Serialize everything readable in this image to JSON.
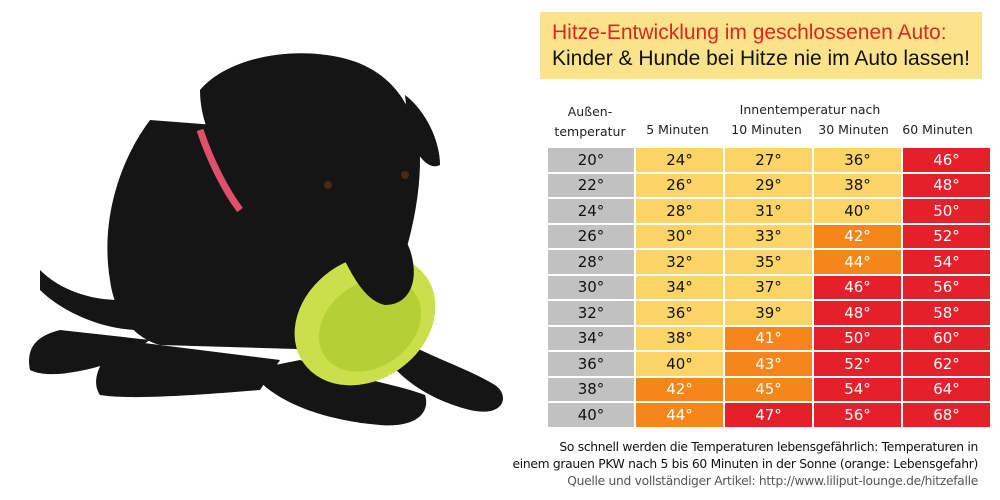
{
  "title": {
    "line1": "Hitze-Entwicklung im geschlossenen Auto:",
    "line2": "Kinder & Hunde bei Hitze nie im Auto lassen!",
    "line1_color": "#e2251c"
  },
  "header": {
    "outside_line1": "Außen-",
    "outside_line2": "temperatur",
    "inside_group": "Innentemperatur nach",
    "columns": [
      "5 Minuten",
      "10 Minuten",
      "30 Minuten",
      "60 Minuten"
    ]
  },
  "colors": {
    "gray": "#c1c1c1",
    "yellow": "#fdd567",
    "orange": "#f5861c",
    "red": "#e4202a",
    "title_box": "#fbe38b"
  },
  "chart_data": {
    "type": "table",
    "columns": [
      "Außentemperatur",
      "5 Minuten",
      "10 Minuten",
      "30 Minuten",
      "60 Minuten"
    ],
    "rows": [
      {
        "outside": "20°",
        "cells": [
          {
            "v": "24°",
            "c": "yellow"
          },
          {
            "v": "27°",
            "c": "yellow"
          },
          {
            "v": "36°",
            "c": "yellow"
          },
          {
            "v": "46°",
            "c": "red"
          }
        ]
      },
      {
        "outside": "22°",
        "cells": [
          {
            "v": "26°",
            "c": "yellow"
          },
          {
            "v": "29°",
            "c": "yellow"
          },
          {
            "v": "38°",
            "c": "yellow"
          },
          {
            "v": "48°",
            "c": "red"
          }
        ]
      },
      {
        "outside": "24°",
        "cells": [
          {
            "v": "28°",
            "c": "yellow"
          },
          {
            "v": "31°",
            "c": "yellow"
          },
          {
            "v": "40°",
            "c": "yellow"
          },
          {
            "v": "50°",
            "c": "red"
          }
        ]
      },
      {
        "outside": "26°",
        "cells": [
          {
            "v": "30°",
            "c": "yellow"
          },
          {
            "v": "33°",
            "c": "yellow"
          },
          {
            "v": "42°",
            "c": "orange"
          },
          {
            "v": "52°",
            "c": "red"
          }
        ]
      },
      {
        "outside": "28°",
        "cells": [
          {
            "v": "32°",
            "c": "yellow"
          },
          {
            "v": "35°",
            "c": "yellow"
          },
          {
            "v": "44°",
            "c": "orange"
          },
          {
            "v": "54°",
            "c": "red"
          }
        ]
      },
      {
        "outside": "30°",
        "cells": [
          {
            "v": "34°",
            "c": "yellow"
          },
          {
            "v": "37°",
            "c": "yellow"
          },
          {
            "v": "46°",
            "c": "red"
          },
          {
            "v": "56°",
            "c": "red"
          }
        ]
      },
      {
        "outside": "32°",
        "cells": [
          {
            "v": "36°",
            "c": "yellow"
          },
          {
            "v": "39°",
            "c": "yellow"
          },
          {
            "v": "48°",
            "c": "red"
          },
          {
            "v": "58°",
            "c": "red"
          }
        ]
      },
      {
        "outside": "34°",
        "cells": [
          {
            "v": "38°",
            "c": "yellow"
          },
          {
            "v": "41°",
            "c": "orange"
          },
          {
            "v": "50°",
            "c": "red"
          },
          {
            "v": "60°",
            "c": "red"
          }
        ]
      },
      {
        "outside": "36°",
        "cells": [
          {
            "v": "40°",
            "c": "yellow"
          },
          {
            "v": "43°",
            "c": "orange"
          },
          {
            "v": "52°",
            "c": "red"
          },
          {
            "v": "62°",
            "c": "red"
          }
        ]
      },
      {
        "outside": "38°",
        "cells": [
          {
            "v": "42°",
            "c": "orange"
          },
          {
            "v": "45°",
            "c": "orange"
          },
          {
            "v": "54°",
            "c": "red"
          },
          {
            "v": "64°",
            "c": "red"
          }
        ]
      },
      {
        "outside": "40°",
        "cells": [
          {
            "v": "44°",
            "c": "orange"
          },
          {
            "v": "47°",
            "c": "red"
          },
          {
            "v": "56°",
            "c": "red"
          },
          {
            "v": "68°",
            "c": "red"
          }
        ]
      }
    ]
  },
  "footer": {
    "line1": "So schnell werden die Temperaturen lebensgefährlich: Temperaturen in",
    "line2": "einem grauen PKW nach 5 bis 60 Minuten in der Sonne (orange: Lebensgefahr)",
    "source": "Quelle und vollständiger Artikel: http://www.liliput-lounge.de/hitzefalle"
  }
}
